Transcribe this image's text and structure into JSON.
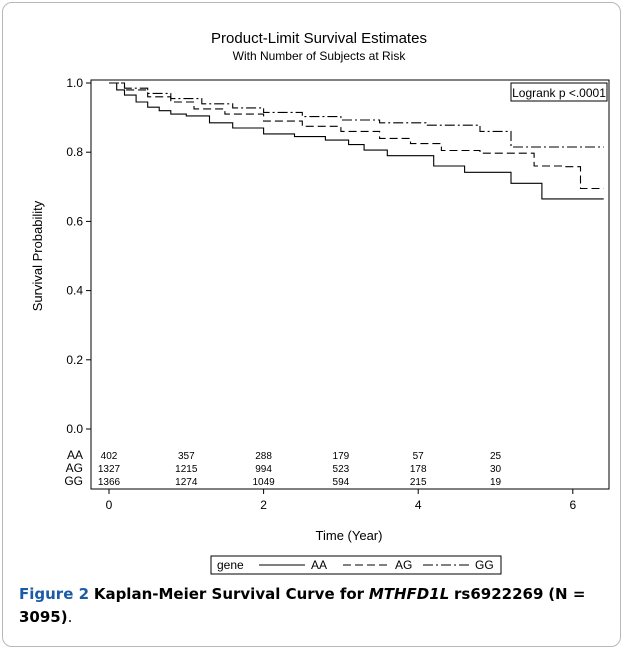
{
  "chart_data": {
    "type": "line",
    "title": "Product-Limit Survival Estimates",
    "subtitle": "With Number of Subjects at Risk",
    "xlabel": "Time (Year)",
    "ylabel": "Survival Probability",
    "xlim": [
      0,
      6.5
    ],
    "ylim": [
      0.0,
      1.0
    ],
    "x_ticks": [
      "0",
      "2",
      "4",
      "6"
    ],
    "y_ticks": [
      "0.0",
      "0.2",
      "0.4",
      "0.6",
      "0.8",
      "1.0"
    ],
    "grid": false,
    "annotation": "Logrank p <.0001",
    "legend": {
      "title": "gene",
      "position": "bottom",
      "entries": [
        "AA",
        "AG",
        "GG"
      ]
    },
    "series": [
      {
        "name": "AA",
        "dash": "solid",
        "x": [
          0,
          0.1,
          0.2,
          0.35,
          0.5,
          0.65,
          0.8,
          1.0,
          1.3,
          1.6,
          2.0,
          2.4,
          2.8,
          3.1,
          3.3,
          3.6,
          4.2,
          4.6,
          5.2,
          5.6,
          6.4
        ],
        "y": [
          1.0,
          0.98,
          0.965,
          0.945,
          0.93,
          0.92,
          0.91,
          0.905,
          0.885,
          0.87,
          0.853,
          0.845,
          0.835,
          0.822,
          0.806,
          0.79,
          0.76,
          0.742,
          0.71,
          0.665,
          0.665
        ]
      },
      {
        "name": "AG",
        "dash": "dash",
        "x": [
          0,
          0.2,
          0.5,
          0.8,
          1.1,
          1.5,
          2.0,
          2.5,
          3.0,
          3.5,
          3.9,
          4.3,
          4.8,
          5.5,
          5.9,
          6.1,
          6.4
        ],
        "y": [
          1.0,
          0.98,
          0.96,
          0.945,
          0.925,
          0.91,
          0.89,
          0.875,
          0.86,
          0.84,
          0.825,
          0.805,
          0.797,
          0.76,
          0.758,
          0.695,
          0.695
        ]
      },
      {
        "name": "GG",
        "dash": "dashdot",
        "x": [
          0,
          0.2,
          0.5,
          0.8,
          1.2,
          1.6,
          2.0,
          2.5,
          3.0,
          3.5,
          4.1,
          4.6,
          4.8,
          5.2,
          5.4,
          6.4
        ],
        "y": [
          1.0,
          0.985,
          0.97,
          0.955,
          0.94,
          0.928,
          0.915,
          0.903,
          0.893,
          0.885,
          0.878,
          0.878,
          0.86,
          0.815,
          0.815,
          0.815
        ]
      }
    ],
    "at_risk": {
      "times": [
        0,
        1,
        2,
        3,
        4,
        5
      ],
      "rows": [
        {
          "label": "AA",
          "values": [
            "402",
            "357",
            "288",
            "179",
            "57",
            "25"
          ]
        },
        {
          "label": "AG",
          "values": [
            "1327",
            "1215",
            "994",
            "523",
            "178",
            "30"
          ]
        },
        {
          "label": "GG",
          "values": [
            "1366",
            "1274",
            "1049",
            "594",
            "215",
            "19"
          ]
        }
      ]
    }
  },
  "caption": {
    "figure_label": "Figure 2",
    "text_before_gene": "Kaplan-Meier Survival Curve for",
    "gene": "MTHFD1L",
    "text_after_gene": "rs6922269",
    "sample": "(N = 3095)",
    "end": "."
  }
}
